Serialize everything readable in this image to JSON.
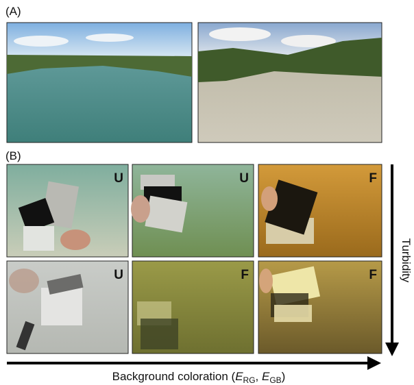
{
  "panel_a": {
    "label": "(A)"
  },
  "panel_b": {
    "label": "(B)",
    "photos": [
      {
        "tag": "U"
      },
      {
        "tag": "U"
      },
      {
        "tag": "F"
      },
      {
        "tag": "U"
      },
      {
        "tag": "F"
      },
      {
        "tag": "F"
      }
    ],
    "vertical_axis_label": "Turbidity",
    "horizontal_axis_label": {
      "text": "Background coloration (",
      "var1": "E",
      "sub1": "RG",
      "sep": ", ",
      "var2": "E",
      "sub2": "GB",
      "close": ")"
    }
  }
}
